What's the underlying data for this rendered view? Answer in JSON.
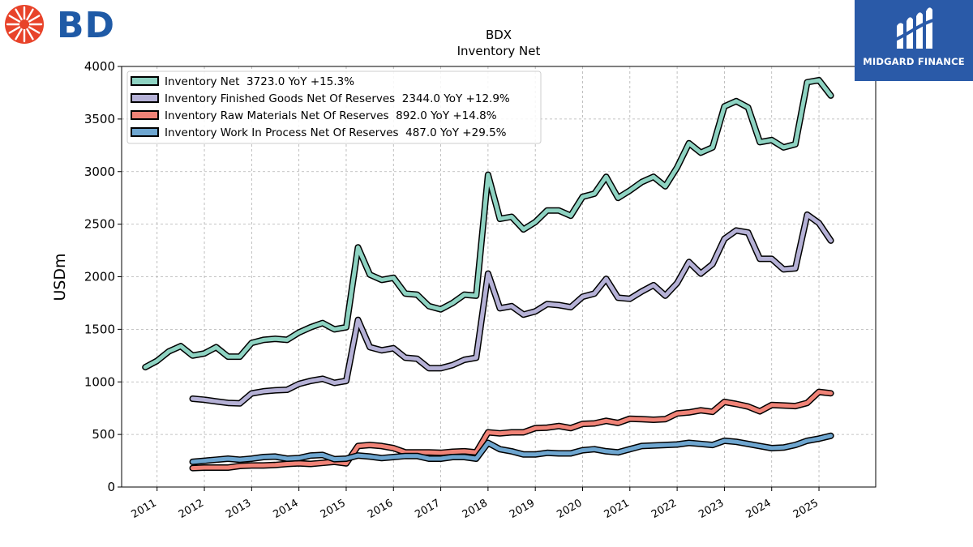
{
  "brand": {
    "left_logo_text": "BD",
    "left_logo_color": "#e8432a",
    "left_text_color": "#1f5aa6",
    "right_logo_text": "MIDGARD FINANCE",
    "right_logo_bg": "#2a5aa8"
  },
  "chart_data": {
    "type": "line",
    "title": "BDX",
    "subtitle": "Inventory Net",
    "xlabel": "",
    "ylabel": "USDm",
    "ylim": [
      0,
      4000
    ],
    "yticks": [
      0,
      500,
      1000,
      1500,
      2000,
      2500,
      3000,
      3500,
      4000
    ],
    "xlim": [
      2010.25,
      2026.2
    ],
    "xticks": [
      2011,
      2012,
      2013,
      2014,
      2015,
      2016,
      2017,
      2018,
      2019,
      2020,
      2021,
      2022,
      2023,
      2024,
      2025
    ],
    "grid": true,
    "legend_position": "top-left",
    "series": [
      {
        "name": "Inventory Net  3723.0 YoY +15.3%",
        "color": "#8ed3c2",
        "x": [
          2010.75,
          2011.0,
          2011.25,
          2011.5,
          2011.75,
          2012.0,
          2012.25,
          2012.5,
          2012.75,
          2013.0,
          2013.25,
          2013.5,
          2013.75,
          2014.0,
          2014.25,
          2014.5,
          2014.75,
          2015.0,
          2015.25,
          2015.5,
          2015.75,
          2016.0,
          2016.25,
          2016.5,
          2016.75,
          2017.0,
          2017.25,
          2017.5,
          2017.75,
          2018.0,
          2018.25,
          2018.5,
          2018.75,
          2019.0,
          2019.25,
          2019.5,
          2019.75,
          2020.0,
          2020.25,
          2020.5,
          2020.75,
          2021.0,
          2021.25,
          2021.5,
          2021.75,
          2022.0,
          2022.25,
          2022.5,
          2022.75,
          2023.0,
          2023.25,
          2023.5,
          2023.75,
          2024.0,
          2024.25,
          2024.5,
          2024.75,
          2025.0,
          2025.25
        ],
        "values": [
          1140,
          1200,
          1290,
          1340,
          1250,
          1270,
          1330,
          1240,
          1240,
          1370,
          1400,
          1410,
          1400,
          1470,
          1520,
          1560,
          1500,
          1520,
          2280,
          2020,
          1970,
          1990,
          1840,
          1830,
          1720,
          1690,
          1750,
          1830,
          1820,
          2970,
          2550,
          2570,
          2450,
          2520,
          2630,
          2630,
          2580,
          2760,
          2790,
          2950,
          2750,
          2820,
          2900,
          2950,
          2860,
          3040,
          3270,
          3180,
          3230,
          3620,
          3670,
          3610,
          3280,
          3300,
          3230,
          3260,
          3850,
          3870,
          3723
        ]
      },
      {
        "name": "Inventory Finished Goods Net Of Reserves  2344.0 YoY +12.9%",
        "color": "#b5b1d6",
        "x": [
          2011.75,
          2012.0,
          2012.25,
          2012.5,
          2012.75,
          2013.0,
          2013.25,
          2013.5,
          2013.75,
          2014.0,
          2014.25,
          2014.5,
          2014.75,
          2015.0,
          2015.25,
          2015.5,
          2015.75,
          2016.0,
          2016.25,
          2016.5,
          2016.75,
          2017.0,
          2017.25,
          2017.5,
          2017.75,
          2018.0,
          2018.25,
          2018.5,
          2018.75,
          2019.0,
          2019.25,
          2019.5,
          2019.75,
          2020.0,
          2020.25,
          2020.5,
          2020.75,
          2021.0,
          2021.25,
          2021.5,
          2021.75,
          2022.0,
          2022.25,
          2022.5,
          2022.75,
          2023.0,
          2023.25,
          2023.5,
          2023.75,
          2024.0,
          2024.25,
          2024.5,
          2024.75,
          2025.0,
          2025.25
        ],
        "values": [
          840,
          830,
          815,
          800,
          795,
          890,
          910,
          920,
          925,
          980,
          1010,
          1030,
          990,
          1010,
          1590,
          1330,
          1300,
          1320,
          1230,
          1220,
          1130,
          1130,
          1160,
          1210,
          1230,
          2030,
          1700,
          1720,
          1640,
          1670,
          1740,
          1730,
          1710,
          1810,
          1840,
          1980,
          1800,
          1790,
          1860,
          1920,
          1820,
          1940,
          2140,
          2030,
          2120,
          2360,
          2440,
          2420,
          2170,
          2170,
          2070,
          2080,
          2590,
          2510,
          2344
        ]
      },
      {
        "name": "Inventory Raw Materials Net Of Reserves  892.0 YoY +14.8%",
        "color": "#f08377",
        "x": [
          2011.75,
          2012.0,
          2012.25,
          2012.5,
          2012.75,
          2013.0,
          2013.25,
          2013.5,
          2013.75,
          2014.0,
          2014.25,
          2014.5,
          2014.75,
          2015.0,
          2015.25,
          2015.5,
          2015.75,
          2016.0,
          2016.25,
          2016.5,
          2016.75,
          2017.0,
          2017.25,
          2017.5,
          2017.75,
          2018.0,
          2018.25,
          2018.5,
          2018.75,
          2019.0,
          2019.25,
          2019.5,
          2019.75,
          2020.0,
          2020.25,
          2020.5,
          2020.75,
          2021.0,
          2021.25,
          2021.5,
          2021.75,
          2022.0,
          2022.25,
          2022.5,
          2022.75,
          2023.0,
          2023.25,
          2023.5,
          2023.75,
          2024.0,
          2024.25,
          2024.5,
          2024.75,
          2025.0,
          2025.25
        ],
        "values": [
          180,
          185,
          185,
          185,
          200,
          205,
          205,
          210,
          220,
          225,
          220,
          230,
          240,
          225,
          390,
          400,
          390,
          370,
          330,
          330,
          330,
          325,
          335,
          340,
          330,
          520,
          510,
          520,
          520,
          560,
          565,
          580,
          560,
          600,
          605,
          630,
          610,
          650,
          645,
          640,
          645,
          700,
          710,
          730,
          715,
          810,
          790,
          765,
          720,
          780,
          775,
          770,
          800,
          905,
          892
        ]
      },
      {
        "name": "Inventory Work In Process Net Of Reserves  487.0 YoY +29.5%",
        "color": "#6ea6d0",
        "x": [
          2011.75,
          2012.0,
          2012.25,
          2012.5,
          2012.75,
          2013.0,
          2013.25,
          2013.5,
          2013.75,
          2014.0,
          2014.25,
          2014.5,
          2014.75,
          2015.0,
          2015.25,
          2015.5,
          2015.75,
          2016.0,
          2016.25,
          2016.5,
          2016.75,
          2017.0,
          2017.25,
          2017.5,
          2017.75,
          2018.0,
          2018.25,
          2018.5,
          2018.75,
          2019.0,
          2019.25,
          2019.5,
          2019.75,
          2020.0,
          2020.25,
          2020.5,
          2020.75,
          2021.0,
          2021.25,
          2021.5,
          2021.75,
          2022.0,
          2022.25,
          2022.5,
          2022.75,
          2023.0,
          2023.25,
          2023.5,
          2023.75,
          2024.0,
          2024.25,
          2024.5,
          2024.75,
          2025.0,
          2025.25
        ],
        "values": [
          240,
          250,
          260,
          270,
          260,
          270,
          285,
          290,
          270,
          275,
          300,
          305,
          265,
          270,
          300,
          290,
          275,
          285,
          295,
          295,
          270,
          270,
          285,
          285,
          270,
          420,
          360,
          340,
          310,
          310,
          325,
          320,
          320,
          350,
          360,
          340,
          330,
          360,
          390,
          395,
          400,
          405,
          420,
          410,
          400,
          440,
          430,
          410,
          390,
          370,
          375,
          400,
          440,
          460,
          487
        ]
      }
    ]
  }
}
